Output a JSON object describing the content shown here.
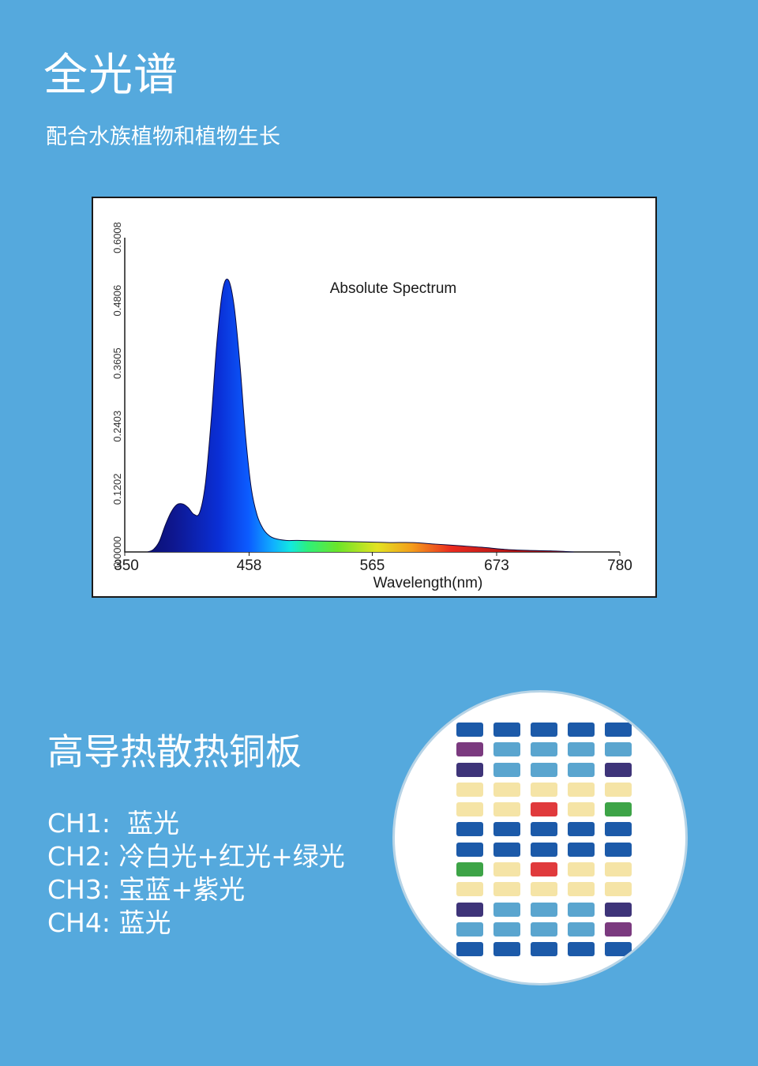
{
  "header": {
    "title": "全光谱",
    "subtitle": "配合水族植物和植物生长"
  },
  "chart_data": {
    "type": "area",
    "title": "Absolute Spectrum",
    "xlabel": "Wavelength(nm)",
    "ylabel": "",
    "x_ticks": [
      "350",
      "458",
      "565",
      "673",
      "780"
    ],
    "y_ticks": [
      "0.0000",
      "0.1202",
      "0.2403",
      "0.3605",
      "0.4806",
      "0.6008"
    ],
    "xlim": [
      350,
      780
    ],
    "ylim": [
      0,
      0.6008
    ],
    "grid": false,
    "x": [
      370,
      375,
      380,
      385,
      390,
      395,
      400,
      405,
      410,
      415,
      420,
      425,
      430,
      435,
      440,
      445,
      450,
      455,
      460,
      465,
      470,
      475,
      480,
      490,
      500,
      520,
      540,
      560,
      580,
      600,
      620,
      640,
      660,
      680,
      700,
      720,
      740
    ],
    "y": [
      0.0,
      0.005,
      0.02,
      0.05,
      0.075,
      0.09,
      0.092,
      0.085,
      0.072,
      0.075,
      0.13,
      0.25,
      0.4,
      0.5,
      0.52,
      0.47,
      0.36,
      0.22,
      0.12,
      0.07,
      0.045,
      0.032,
      0.026,
      0.022,
      0.022,
      0.021,
      0.02,
      0.019,
      0.018,
      0.018,
      0.015,
      0.012,
      0.009,
      0.005,
      0.003,
      0.002,
      0.0
    ]
  },
  "board": {
    "title": "高导热散热铜板",
    "channels": [
      "CH1:  蓝光",
      "CH2: 冷白光+红光+绿光",
      "CH3: 宝蓝+紫光",
      "CH4: 蓝光"
    ],
    "colors": {
      "B": "#1c5aa9",
      "L": "#5aa5cf",
      "Y": "#f5e4a6",
      "R": "#e03a3c",
      "G": "#3da447",
      "P": "#7b3a7f",
      "V": "#3e3479"
    },
    "led_rows": [
      [
        "B",
        "B",
        "B",
        "B",
        "B"
      ],
      [
        "P",
        "L",
        "L",
        "L",
        "L"
      ],
      [
        "V",
        "L",
        "L",
        "L",
        "V"
      ],
      [
        "Y",
        "Y",
        "Y",
        "Y",
        "Y"
      ],
      [
        "Y",
        "Y",
        "R",
        "Y",
        "G"
      ],
      [
        "B",
        "B",
        "B",
        "B",
        "B"
      ],
      [
        "B",
        "B",
        "B",
        "B",
        "B"
      ],
      [
        "G",
        "Y",
        "R",
        "Y",
        "Y"
      ],
      [
        "Y",
        "Y",
        "Y",
        "Y",
        "Y"
      ],
      [
        "V",
        "L",
        "L",
        "L",
        "V"
      ],
      [
        "L",
        "L",
        "L",
        "L",
        "P"
      ],
      [
        "B",
        "B",
        "B",
        "B",
        "B"
      ]
    ]
  }
}
